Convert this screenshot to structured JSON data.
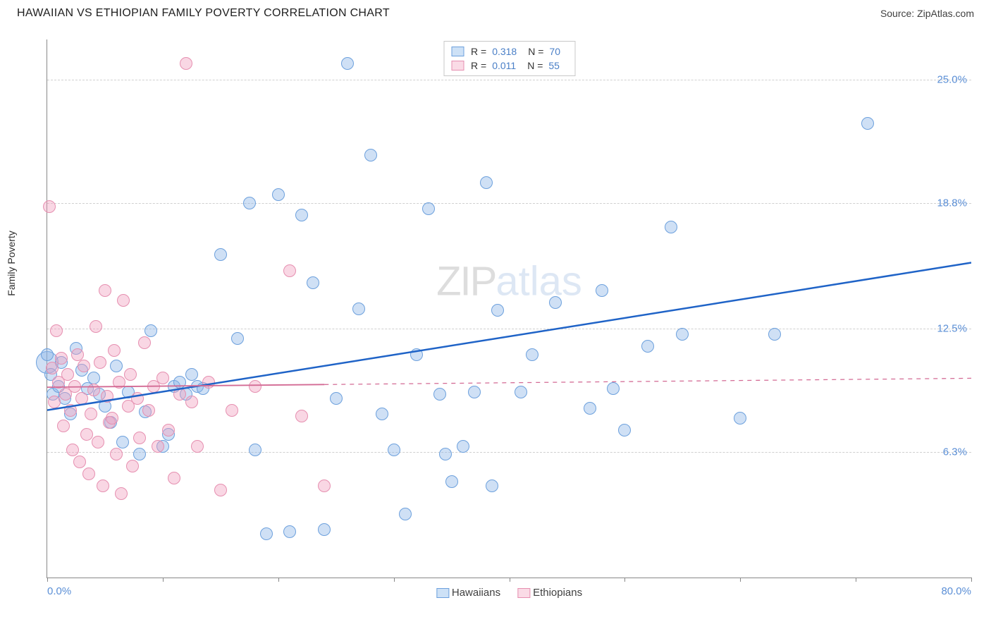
{
  "title": "HAWAIIAN VS ETHIOPIAN FAMILY POVERTY CORRELATION CHART",
  "source": "Source: ZipAtlas.com",
  "ylabel": "Family Poverty",
  "watermark": {
    "part1": "ZIP",
    "part2": "atlas"
  },
  "chart": {
    "type": "scatter",
    "background_color": "#ffffff",
    "grid_color": "#d0d0d0",
    "axis_color": "#888888",
    "xlim": [
      0,
      80
    ],
    "ylim": [
      0,
      27
    ],
    "xticks": [
      0,
      10,
      20,
      30,
      40,
      50,
      60,
      70,
      80
    ],
    "xaxis_start_label": "0.0%",
    "xaxis_end_label": "80.0%",
    "ygrid": [
      {
        "value": 25.0,
        "label": "25.0%"
      },
      {
        "value": 18.8,
        "label": "18.8%"
      },
      {
        "value": 12.5,
        "label": "12.5%"
      },
      {
        "value": 6.3,
        "label": "6.3%"
      }
    ],
    "label_color": "#5b8fd6",
    "label_fontsize": 15,
    "marker_radius": 9,
    "marker_stroke_width": 1,
    "series": [
      {
        "name": "Hawaiians",
        "fill": "rgba(140,180,230,0.42)",
        "stroke": "#6ca0dd",
        "swatch_fill": "#cde1f6",
        "swatch_stroke": "#6ca0dd",
        "stats": {
          "R": "0.318",
          "N": "70"
        },
        "trend": {
          "color": "#1f63c7",
          "width": 2.5,
          "solid_until_x": 80,
          "y_at_x0": 8.4,
          "y_at_xmax": 15.8
        },
        "points": [
          [
            0,
            11.2
          ],
          [
            0.3,
            10.2
          ],
          [
            0.5,
            9.2
          ],
          [
            1,
            9.6
          ],
          [
            1.2,
            10.8
          ],
          [
            1.5,
            9
          ],
          [
            2,
            8.2
          ],
          [
            2.5,
            11.5
          ],
          [
            3,
            10.4
          ],
          [
            3.5,
            9.5
          ],
          [
            4,
            10
          ],
          [
            4.5,
            9.2
          ],
          [
            5,
            8.6
          ],
          [
            5.5,
            7.8
          ],
          [
            6,
            10.6
          ],
          [
            6.5,
            6.8
          ],
          [
            7,
            9.3
          ],
          [
            8,
            6.2
          ],
          [
            8.5,
            8.3
          ],
          [
            9,
            12.4
          ],
          [
            10,
            6.6
          ],
          [
            10.5,
            7.2
          ],
          [
            11,
            9.6
          ],
          [
            11.5,
            9.8
          ],
          [
            12,
            9.2
          ],
          [
            12.5,
            10.2
          ],
          [
            13,
            9.6
          ],
          [
            13.5,
            9.5
          ],
          [
            15,
            16.2
          ],
          [
            16.5,
            12
          ],
          [
            17.5,
            18.8
          ],
          [
            18,
            6.4
          ],
          [
            19,
            2.2
          ],
          [
            20,
            19.2
          ],
          [
            21,
            2.3
          ],
          [
            22,
            18.2
          ],
          [
            23,
            14.8
          ],
          [
            24,
            2.4
          ],
          [
            25,
            9
          ],
          [
            26,
            25.8
          ],
          [
            27,
            13.5
          ],
          [
            28,
            21.2
          ],
          [
            29,
            8.2
          ],
          [
            30,
            6.4
          ],
          [
            31,
            3.2
          ],
          [
            32,
            11.2
          ],
          [
            33,
            18.5
          ],
          [
            34,
            9.2
          ],
          [
            34.5,
            6.2
          ],
          [
            35,
            4.8
          ],
          [
            36,
            6.6
          ],
          [
            37,
            9.3
          ],
          [
            38,
            19.8
          ],
          [
            38.5,
            4.6
          ],
          [
            39,
            13.4
          ],
          [
            41,
            9.3
          ],
          [
            42,
            11.2
          ],
          [
            44,
            13.8
          ],
          [
            47,
            8.5
          ],
          [
            48,
            14.4
          ],
          [
            49,
            9.5
          ],
          [
            50,
            7.4
          ],
          [
            52,
            11.6
          ],
          [
            54,
            17.6
          ],
          [
            55,
            12.2
          ],
          [
            60,
            8.0
          ],
          [
            63,
            12.2
          ],
          [
            71,
            22.8
          ]
        ],
        "big_point": {
          "x": 0,
          "y": 10.8,
          "r": 16
        }
      },
      {
        "name": "Ethiopians",
        "fill": "rgba(240,160,190,0.42)",
        "stroke": "#e68fb0",
        "swatch_fill": "#fadbe6",
        "swatch_stroke": "#e68fb0",
        "stats": {
          "R": "0.011",
          "N": "55"
        },
        "trend": {
          "color": "#d36a94",
          "width": 1.8,
          "solid_until_x": 24,
          "y_at_x0": 9.55,
          "y_at_xmax": 10.0
        },
        "points": [
          [
            0.2,
            18.6
          ],
          [
            0.4,
            10.5
          ],
          [
            0.6,
            8.8
          ],
          [
            0.8,
            12.4
          ],
          [
            1,
            9.8
          ],
          [
            1.2,
            11
          ],
          [
            1.4,
            7.6
          ],
          [
            1.6,
            9.2
          ],
          [
            1.8,
            10.2
          ],
          [
            2,
            8.4
          ],
          [
            2.2,
            6.4
          ],
          [
            2.4,
            9.6
          ],
          [
            2.6,
            11.2
          ],
          [
            2.8,
            5.8
          ],
          [
            3,
            9
          ],
          [
            3.2,
            10.6
          ],
          [
            3.4,
            7.2
          ],
          [
            3.6,
            5.2
          ],
          [
            3.8,
            8.2
          ],
          [
            4,
            9.4
          ],
          [
            4.2,
            12.6
          ],
          [
            4.4,
            6.8
          ],
          [
            4.6,
            10.8
          ],
          [
            4.8,
            4.6
          ],
          [
            5,
            14.4
          ],
          [
            5.2,
            9.1
          ],
          [
            5.4,
            7.8
          ],
          [
            5.6,
            8.0
          ],
          [
            5.8,
            11.4
          ],
          [
            6,
            6.2
          ],
          [
            6.2,
            9.8
          ],
          [
            6.4,
            4.2
          ],
          [
            6.6,
            13.9
          ],
          [
            7,
            8.6
          ],
          [
            7.2,
            10.2
          ],
          [
            7.4,
            5.6
          ],
          [
            7.8,
            9.0
          ],
          [
            8,
            7.0
          ],
          [
            8.4,
            11.8
          ],
          [
            8.8,
            8.4
          ],
          [
            9.2,
            9.6
          ],
          [
            9.6,
            6.6
          ],
          [
            10,
            10
          ],
          [
            10.5,
            7.4
          ],
          [
            11,
            5.0
          ],
          [
            11.5,
            9.2
          ],
          [
            12,
            25.8
          ],
          [
            12.5,
            8.8
          ],
          [
            13,
            6.6
          ],
          [
            14,
            9.8
          ],
          [
            15,
            4.4
          ],
          [
            16,
            8.4
          ],
          [
            18,
            9.6
          ],
          [
            21,
            15.4
          ],
          [
            22,
            8.1
          ],
          [
            24,
            4.6
          ]
        ]
      }
    ]
  },
  "legend_top": {
    "R_label": "R =",
    "N_label": "N ="
  },
  "legend_bottom": [
    {
      "label": "Hawaiians",
      "series_idx": 0
    },
    {
      "label": "Ethiopians",
      "series_idx": 1
    }
  ]
}
